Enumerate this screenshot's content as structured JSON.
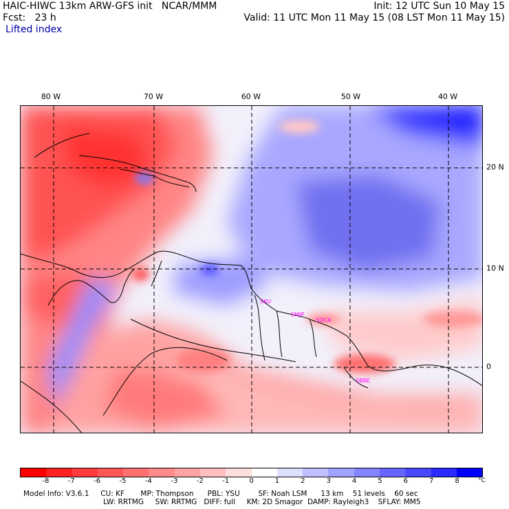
{
  "header": {
    "title": "HAIC-HIWC 13km ARW-GFS init   NCAR/MMM",
    "fcst": "Fcst:   23 h",
    "init": "Init: 12 UTC Sun 10 May 15",
    "valid": "Valid: 11 UTC Mon 11 May 15 (08 LST Mon 11 May 15)",
    "field": "Lifted index"
  },
  "map": {
    "longitude_labels": [
      "80 W",
      "70 W",
      "60 W",
      "50 W",
      "40 W"
    ],
    "latitude_labels": [
      "20 N",
      "10 N",
      "0"
    ],
    "stations": [
      "SKU",
      "SMJP",
      "SOCA",
      "SBBE"
    ],
    "station_color": "#ff00ff",
    "gridline_style": "dashed"
  },
  "colorbar": {
    "ticks": [
      "-8",
      "-7",
      "-6",
      "-5",
      "-4",
      "-3",
      "-2",
      "-1",
      "0",
      "1",
      "2",
      "3",
      "4",
      "5",
      "6",
      "7",
      "8"
    ],
    "unit": "°C",
    "colors": [
      "#ff0000",
      "#ff2020",
      "#ff3c3c",
      "#ff5656",
      "#ff7070",
      "#ff8a8a",
      "#ffa4a4",
      "#ffc0c0",
      "#ffdede",
      "#ffffff",
      "#dedeff",
      "#c0c0ff",
      "#a2a2ff",
      "#8484ff",
      "#6666ff",
      "#4848ff",
      "#2828ff",
      "#0000ff"
    ]
  },
  "model_info": {
    "line1": "Model Info: V3.6.1     CU: KF       MP: Thompson      PBL: YSU        SF: Noah LSM      13 km    51 levels    60 sec",
    "line2": "LW: RRTMG     SW: RRTMG   DIFF: full     KM: 2D Smagor  DAMP: Rayleigh3    SFLAY: MM5"
  }
}
